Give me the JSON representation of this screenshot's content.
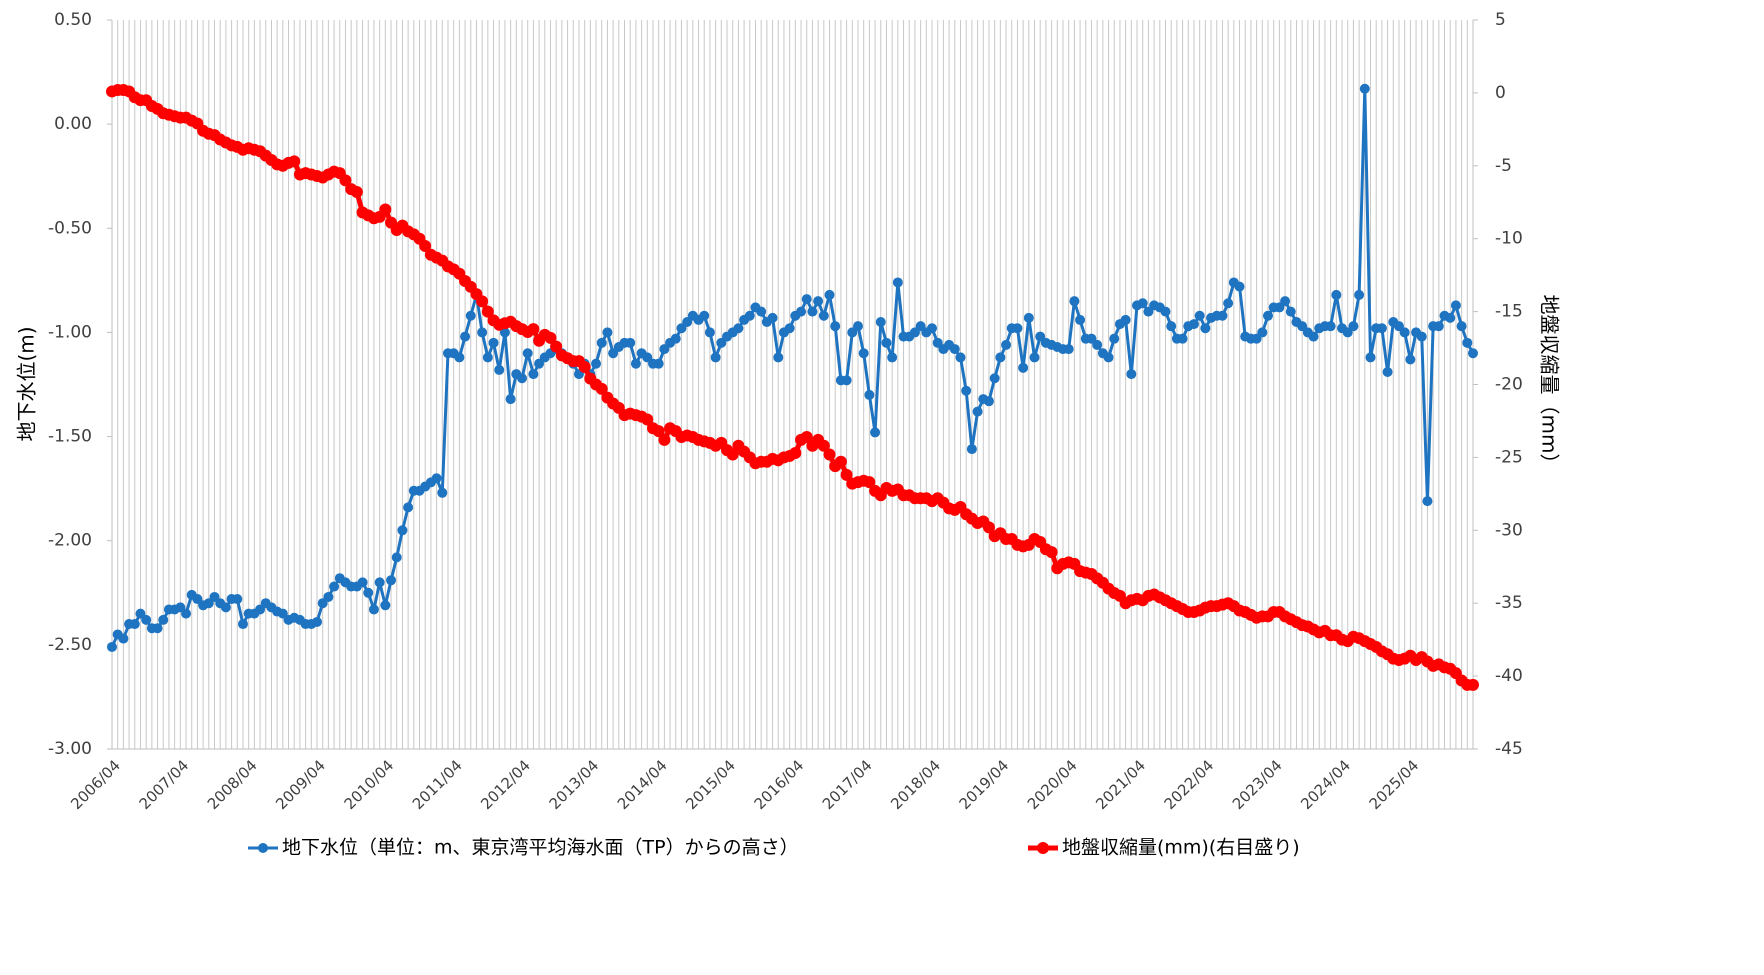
{
  "chart_data": {
    "type": "line",
    "y_label": "地下水位(m)",
    "y2_label": "地盤収縮量（mm）",
    "categories": [
      "2006/04",
      null,
      null,
      null,
      null,
      null,
      null,
      null,
      null,
      null,
      null,
      null,
      "2007/04",
      null,
      null,
      null,
      null,
      null,
      null,
      null,
      null,
      null,
      null,
      null,
      "2008/04",
      null,
      null,
      null,
      null,
      null,
      null,
      null,
      null,
      null,
      null,
      null,
      "2009/04",
      null,
      null,
      null,
      null,
      null,
      null,
      null,
      null,
      null,
      null,
      null,
      "2010/04",
      null,
      null,
      null,
      null,
      null,
      null,
      null,
      null,
      null,
      null,
      null,
      "2011/04",
      null,
      null,
      null,
      null,
      null,
      null,
      null,
      null,
      null,
      null,
      null,
      "2012/04",
      null,
      null,
      null,
      null,
      null,
      null,
      null,
      null,
      null,
      null,
      null,
      "2013/04",
      null,
      null,
      null,
      null,
      null,
      null,
      null,
      null,
      null,
      null,
      null,
      "2014/04",
      null,
      null,
      null,
      null,
      null,
      null,
      null,
      null,
      null,
      null,
      null,
      "2015/04",
      null,
      null,
      null,
      null,
      null,
      null,
      null,
      null,
      null,
      null,
      null,
      "2016/04",
      null,
      null,
      null,
      null,
      null,
      null,
      null,
      null,
      null,
      null,
      null,
      "2017/04",
      null,
      null,
      null,
      null,
      null,
      null,
      null,
      null,
      null,
      null,
      null,
      "2018/04",
      null,
      null,
      null,
      null,
      null,
      null,
      null,
      null,
      null,
      null,
      null,
      "2019/04",
      null,
      null,
      null,
      null,
      null,
      null,
      null,
      null,
      null,
      null,
      null,
      "2020/04",
      null,
      null,
      null,
      null,
      null,
      null,
      null,
      null,
      null,
      null,
      null,
      "2021/04",
      null,
      null,
      null,
      null,
      null,
      null,
      null,
      null,
      null,
      null,
      null,
      "2022/04",
      null,
      null,
      null,
      null,
      null,
      null,
      null,
      null,
      null,
      null,
      null,
      "2023/04",
      null,
      null,
      null,
      null,
      null,
      null,
      null,
      null,
      null,
      null,
      null,
      "2024/04",
      null,
      null,
      null,
      null,
      null,
      null,
      null,
      null,
      null,
      null,
      null,
      "2025/04",
      null,
      null,
      null,
      null,
      null,
      null,
      null,
      null,
      null,
      null,
      null
    ],
    "series": [
      {
        "name": "地下水位（単位：m、東京湾平均海水面（TP）からの高さ）",
        "color": "#1f74c1",
        "axis": "y",
        "values": [
          -2.51,
          -2.45,
          -2.47,
          -2.4,
          -2.4,
          -2.35,
          -2.38,
          -2.42,
          -2.42,
          -2.38,
          -2.33,
          -2.33,
          -2.32,
          -2.35,
          -2.26,
          -2.28,
          -2.31,
          -2.3,
          -2.27,
          -2.3,
          -2.32,
          -2.28,
          -2.28,
          -2.4,
          -2.35,
          -2.35,
          -2.33,
          -2.3,
          -2.32,
          -2.34,
          -2.35,
          -2.38,
          -2.37,
          -2.38,
          -2.4,
          -2.4,
          -2.39,
          -2.3,
          -2.27,
          -2.22,
          -2.18,
          -2.2,
          -2.22,
          -2.22,
          -2.2,
          -2.25,
          -2.33,
          -2.2,
          -2.31,
          -2.19,
          -2.08,
          -1.95,
          -1.84,
          -1.76,
          -1.76,
          -1.74,
          -1.72,
          -1.7,
          -1.77,
          -1.1,
          -1.1,
          -1.12,
          -1.02,
          -0.92,
          -0.82,
          -1.0,
          -1.12,
          -1.05,
          -1.18,
          -1.0,
          -1.32,
          -1.2,
          -1.22,
          -1.1,
          -1.2,
          -1.15,
          -1.12,
          -1.1,
          -1.08,
          -1.1,
          -1.12,
          -1.15,
          -1.2,
          -1.15,
          -1.2,
          -1.15,
          -1.05,
          -1.0,
          -1.1,
          -1.07,
          -1.05,
          -1.05,
          -1.15,
          -1.1,
          -1.12,
          -1.15,
          -1.15,
          -1.08,
          -1.05,
          -1.03,
          -0.98,
          -0.95,
          -0.92,
          -0.94,
          -0.92,
          -1.0,
          -1.12,
          -1.05,
          -1.02,
          -1.0,
          -0.98,
          -0.94,
          -0.92,
          -0.88,
          -0.9,
          -0.95,
          -0.93,
          -1.12,
          -1.0,
          -0.98,
          -0.92,
          -0.9,
          -0.84,
          -0.9,
          -0.85,
          -0.92,
          -0.82,
          -0.97,
          -1.23,
          -1.23,
          -1.0,
          -0.97,
          -1.1,
          -1.3,
          -1.48,
          -0.95,
          -1.05,
          -1.12,
          -0.76,
          -1.02,
          -1.02,
          -1.0,
          -0.97,
          -1.0,
          -0.98,
          -1.05,
          -1.08,
          -1.06,
          -1.08,
          -1.12,
          -1.28,
          -1.56,
          -1.38,
          -1.32,
          -1.33,
          -1.22,
          -1.12,
          -1.06,
          -0.98,
          -0.98,
          -1.17,
          -0.93,
          -1.12,
          -1.02,
          -1.05,
          -1.06,
          -1.07,
          -1.08,
          -1.08,
          -0.85,
          -0.94,
          -1.03,
          -1.03,
          -1.06,
          -1.1,
          -1.12,
          -1.03,
          -0.96,
          -0.94,
          -1.2,
          -0.87,
          -0.86,
          -0.9,
          -0.87,
          -0.88,
          -0.9,
          -0.97,
          -1.03,
          -1.03,
          -0.97,
          -0.96,
          -0.92,
          -0.98,
          -0.93,
          -0.92,
          -0.92,
          -0.86,
          -0.76,
          -0.78,
          -1.02,
          -1.03,
          -1.03,
          -1.0,
          -0.92,
          -0.88,
          -0.88,
          -0.85,
          -0.9,
          -0.95,
          -0.97,
          -1.0,
          -1.02,
          -0.98,
          -0.97,
          -0.97,
          -0.82,
          -0.98,
          -1.0,
          -0.97,
          -0.82,
          0.17,
          -1.12,
          -0.98,
          -0.98,
          -1.19,
          -0.95,
          -0.97,
          -1.0,
          -1.13,
          -1.0,
          -1.02,
          -1.81,
          -0.97,
          -0.97,
          -0.92,
          -0.93,
          -0.87,
          -0.97,
          -1.05,
          -1.1
        ]
      },
      {
        "name": "地盤収縮量(mm)(右目盛り)",
        "color": "#ff0000",
        "axis": "y2",
        "values": [
          0.1,
          0.2,
          0.2,
          0.1,
          -0.3,
          -0.5,
          -0.5,
          -0.9,
          -1.1,
          -1.4,
          -1.5,
          -1.6,
          -1.7,
          -1.7,
          -1.9,
          -2.1,
          -2.6,
          -2.8,
          -2.9,
          -3.2,
          -3.4,
          -3.6,
          -3.7,
          -3.9,
          -3.8,
          -3.9,
          -4.0,
          -4.3,
          -4.6,
          -4.9,
          -5.0,
          -4.8,
          -4.7,
          -5.6,
          -5.5,
          -5.6,
          -5.7,
          -5.8,
          -5.6,
          -5.4,
          -5.5,
          -6.0,
          -6.6,
          -6.8,
          -8.2,
          -8.4,
          -8.6,
          -8.5,
          -8.0,
          -8.9,
          -9.4,
          -9.1,
          -9.5,
          -9.7,
          -10.0,
          -10.5,
          -11.1,
          -11.3,
          -11.5,
          -11.9,
          -12.1,
          -12.4,
          -12.9,
          -13.3,
          -13.8,
          -14.3,
          -15.0,
          -15.6,
          -15.9,
          -15.8,
          -15.7,
          -16.0,
          -16.2,
          -16.4,
          -16.2,
          -17.0,
          -16.6,
          -16.8,
          -17.4,
          -18.0,
          -18.2,
          -18.4,
          -18.4,
          -18.8,
          -19.6,
          -20.0,
          -20.3,
          -20.9,
          -21.3,
          -21.6,
          -22.1,
          -22.0,
          -22.1,
          -22.2,
          -22.4,
          -23.0,
          -23.2,
          -23.8,
          -23.0,
          -23.2,
          -23.6,
          -23.5,
          -23.6,
          -23.8,
          -23.9,
          -24.0,
          -24.2,
          -24.0,
          -24.5,
          -24.8,
          -24.2,
          -24.6,
          -25.0,
          -25.4,
          -25.3,
          -25.3,
          -25.1,
          -25.2,
          -25.0,
          -24.9,
          -24.7,
          -23.8,
          -23.6,
          -24.2,
          -23.8,
          -24.2,
          -24.8,
          -25.6,
          -25.3,
          -26.2,
          -26.8,
          -26.7,
          -26.6,
          -26.7,
          -27.3,
          -27.6,
          -27.1,
          -27.3,
          -27.2,
          -27.6,
          -27.6,
          -27.8,
          -27.8,
          -27.8,
          -28.0,
          -27.8,
          -28.1,
          -28.5,
          -28.6,
          -28.4,
          -28.9,
          -29.2,
          -29.5,
          -29.4,
          -29.8,
          -30.4,
          -30.2,
          -30.6,
          -30.6,
          -31.0,
          -31.1,
          -31.0,
          -30.6,
          -30.8,
          -31.3,
          -31.5,
          -32.6,
          -32.3,
          -32.2,
          -32.3,
          -32.8,
          -32.9,
          -33.0,
          -33.3,
          -33.6,
          -34.0,
          -34.3,
          -34.5,
          -35.0,
          -34.8,
          -34.7,
          -34.8,
          -34.5,
          -34.4,
          -34.6,
          -34.8,
          -35.0,
          -35.2,
          -35.4,
          -35.6,
          -35.6,
          -35.5,
          -35.3,
          -35.2,
          -35.2,
          -35.1,
          -35.0,
          -35.2,
          -35.5,
          -35.6,
          -35.8,
          -36.0,
          -35.9,
          -35.9,
          -35.6,
          -35.6,
          -35.9,
          -36.1,
          -36.3,
          -36.5,
          -36.6,
          -36.8,
          -37.0,
          -36.9,
          -37.2,
          -37.2,
          -37.5,
          -37.6,
          -37.3,
          -37.4,
          -37.6,
          -37.8,
          -38.0,
          -38.3,
          -38.5,
          -38.8,
          -38.9,
          -38.8,
          -38.6,
          -38.9,
          -38.7,
          -39.0,
          -39.3,
          -39.2,
          -39.4,
          -39.5,
          -39.8,
          -40.3,
          -40.6,
          -40.6
        ]
      }
    ],
    "ylim": [
      -3,
      0.5
    ],
    "yticks": [
      {
        "value": 0.5,
        "label": "0.50"
      },
      {
        "value": 0,
        "label": "0.00"
      },
      {
        "value": -0.5,
        "label": "-0.50"
      },
      {
        "value": -1,
        "label": "-1.00"
      },
      {
        "value": -1.5,
        "label": "-1.50"
      },
      {
        "value": -2,
        "label": "-2.00"
      },
      {
        "value": -2.5,
        "label": "-2.50"
      },
      {
        "value": -3,
        "label": "-3.00"
      }
    ],
    "y2lim": [
      -45,
      5
    ],
    "y2ticks": [
      5,
      0,
      -5,
      -10,
      -15,
      -20,
      -25,
      -30,
      -35,
      -40,
      -45
    ],
    "grid": "x",
    "legend": "bottom"
  }
}
